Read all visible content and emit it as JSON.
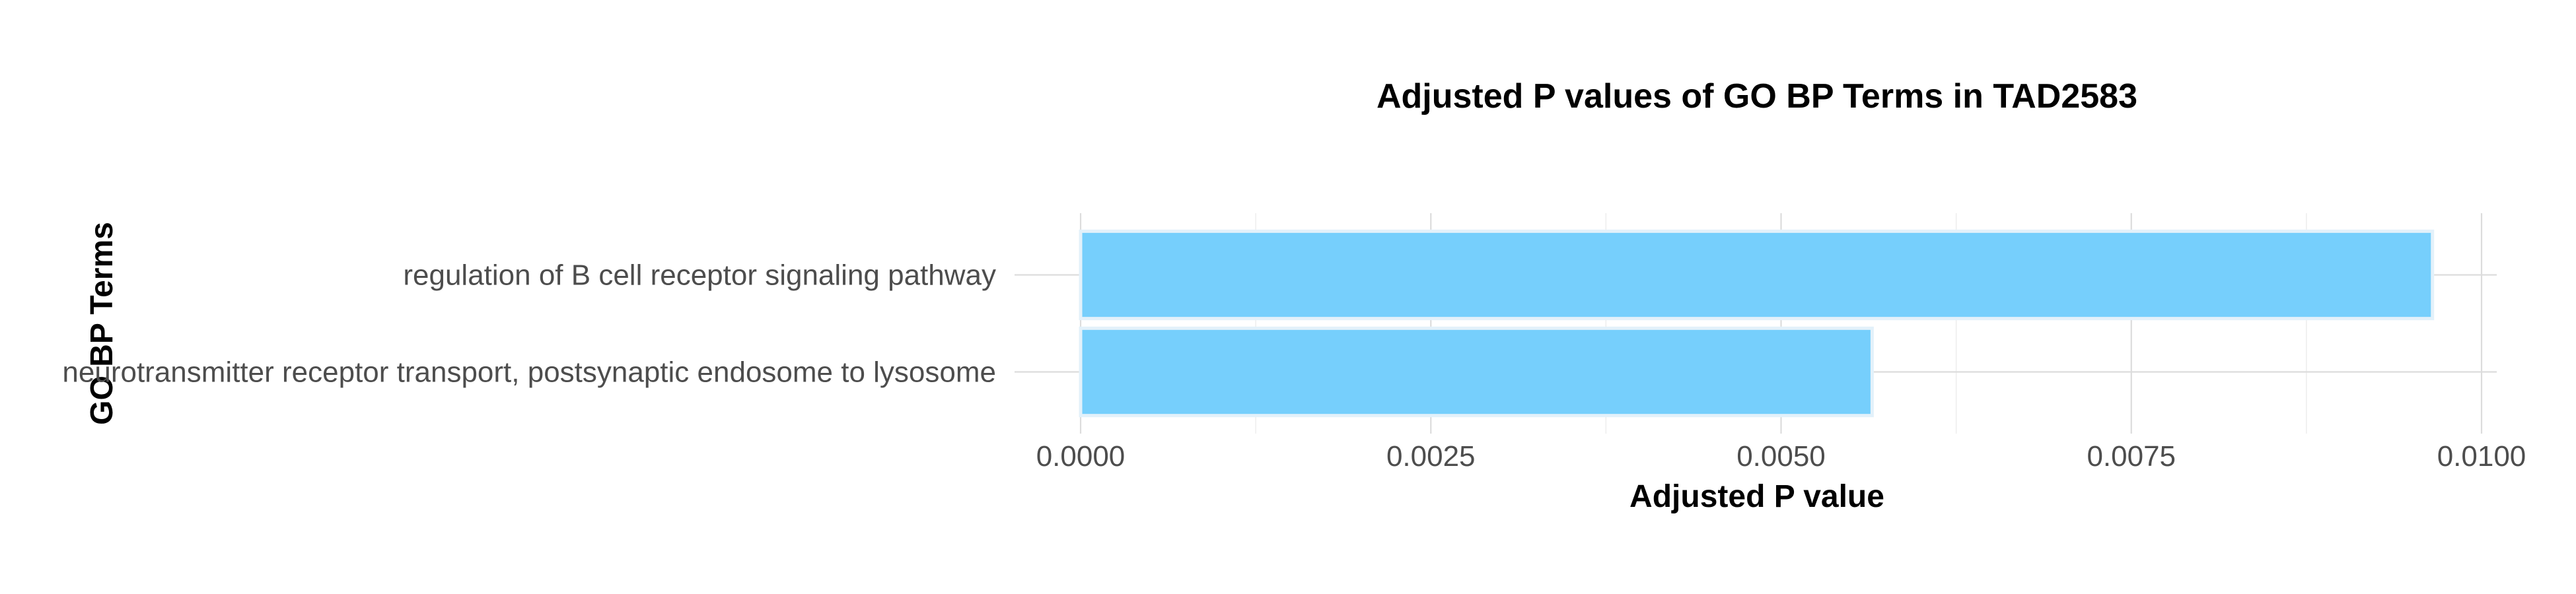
{
  "chart_data": {
    "type": "bar",
    "orientation": "horizontal",
    "title": "Adjusted P values of GO BP Terms in TAD2583",
    "xlabel": "Adjusted P value",
    "ylabel": "GO BP Terms",
    "categories": [
      "regulation of B cell receptor signaling pathway",
      "neurotransmitter receptor transport, postsynaptic endosome to lysosome"
    ],
    "values": [
      0.00965,
      0.00565
    ],
    "xlim": [
      0,
      0.0101
    ],
    "xticks": [
      0,
      0.0025,
      0.005,
      0.0075,
      0.01
    ],
    "xtick_labels": [
      "0.0000",
      "0.0025",
      "0.0050",
      "0.0075",
      "0.0100"
    ],
    "grid": true,
    "legend": "none",
    "colors": {
      "bar_fill": "#76cffc",
      "bar_stroke": "#e3f1fa"
    }
  }
}
